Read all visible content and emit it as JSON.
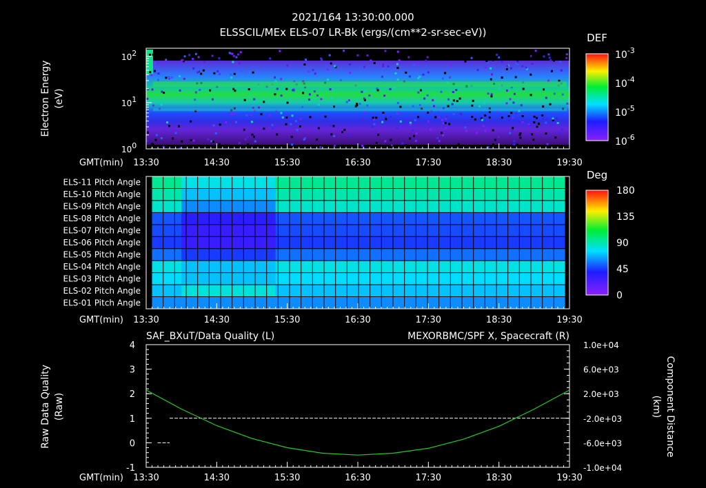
{
  "header": {
    "timestamp": "2021/164 13:30:00.000",
    "subtitle": "ELSSCIL/MEx ELS-07 LR-Bk  (ergs/(cm**2-sr-sec-eV))"
  },
  "time_axis": {
    "prefix": "GMT(min)",
    "ticks": [
      "13:30",
      "14:30",
      "15:30",
      "16:30",
      "17:30",
      "18:30",
      "19:30"
    ]
  },
  "colors": {
    "background": "#000000",
    "quality_line": "#ffffff",
    "spacecraft_x": "#22cc22",
    "label_green": "#22dd22"
  },
  "chart_data": [
    {
      "type": "heatmap",
      "title": "ELSSCIL/MEx ELS-07 LR-Bk  (ergs/(cm**2-sr-sec-eV))",
      "ylabel_line1": "Electron Energy",
      "ylabel_line2": "(eV)",
      "y_scale": "log",
      "ylim": [
        1,
        150
      ],
      "y_ticks": [
        {
          "base": "10",
          "exp": "2",
          "value": 100
        },
        {
          "base": "10",
          "exp": "1",
          "value": 10
        },
        {
          "base": "10",
          "exp": "0",
          "value": 1
        }
      ],
      "colorbar": {
        "label": "DEF",
        "scale": "log",
        "ticks": [
          {
            "base": "10",
            "exp": "-3"
          },
          {
            "base": "10",
            "exp": "-4"
          },
          {
            "base": "10",
            "exp": "-5"
          },
          {
            "base": "10",
            "exp": "-6"
          }
        ]
      },
      "peak_flux_energy_eV": 25,
      "secondary_band_energy_eV": 7
    },
    {
      "type": "heatmap",
      "colorbar": {
        "label": "Deg",
        "ticks": [
          "180",
          "135",
          "90",
          "45",
          "0"
        ],
        "range": [
          0,
          180
        ]
      },
      "rows": [
        "ELS-11 Pitch Angle",
        "ELS-10 Pitch Angle",
        "ELS-09 Pitch Angle",
        "ELS-08 Pitch Angle",
        "ELS-07 Pitch Angle",
        "ELS-06 Pitch Angle",
        "ELS-05 Pitch Angle",
        "ELS-04 Pitch Angle",
        "ELS-03 Pitch Angle",
        "ELS-02 Pitch Angle",
        "ELS-01 Pitch Angle"
      ],
      "typical_values_deg": [
        95,
        90,
        85,
        50,
        48,
        45,
        55,
        80,
        75,
        70,
        60
      ],
      "low_period": [
        "14:00",
        "15:20"
      ],
      "low_period_values_deg": [
        80,
        70,
        60,
        35,
        30,
        30,
        45,
        70,
        70,
        82,
        60
      ]
    },
    {
      "type": "line",
      "left_title": "SAF_BXuT/Data Quality (L)",
      "right_title": "MEXORBMC/SPF X, Spacecraft (R)",
      "ylabel_left_line1": "Raw Data Quality",
      "ylabel_left_line2": "(Raw)",
      "ylabel_right_line1": "Component Distance",
      "ylabel_right_line2": "(km)",
      "left_ylim": [
        -1,
        4
      ],
      "left_ticks": [
        "4",
        "3",
        "2",
        "1",
        "0",
        "-1"
      ],
      "right_ylim": [
        -10000,
        10000
      ],
      "right_ticks": [
        "1.0e+04",
        "6.0e+03",
        "2.0e+03",
        "-2.0e+03",
        "-6.0e+03",
        "-1.0e+04"
      ],
      "series": [
        {
          "name": "SAF_BXuT/Data Quality",
          "axis": "left",
          "points": [
            {
              "t": "13:35",
              "v": 0
            },
            {
              "t": "13:50",
              "v": 0
            },
            {
              "t": "13:50",
              "v": 1
            },
            {
              "t": "19:30",
              "v": 1
            }
          ]
        },
        {
          "name": "MEXORBMC/SPF X, Spacecraft",
          "axis": "right",
          "points": [
            {
              "t": "13:30",
              "v": 2600
            },
            {
              "t": "14:00",
              "v": -500
            },
            {
              "t": "14:30",
              "v": -3200
            },
            {
              "t": "15:00",
              "v": -5300
            },
            {
              "t": "15:30",
              "v": -6800
            },
            {
              "t": "16:00",
              "v": -7700
            },
            {
              "t": "16:30",
              "v": -8000
            },
            {
              "t": "17:00",
              "v": -7700
            },
            {
              "t": "17:30",
              "v": -6900
            },
            {
              "t": "18:00",
              "v": -5400
            },
            {
              "t": "18:30",
              "v": -3300
            },
            {
              "t": "19:00",
              "v": -500
            },
            {
              "t": "19:30",
              "v": 2600
            }
          ]
        }
      ]
    }
  ]
}
